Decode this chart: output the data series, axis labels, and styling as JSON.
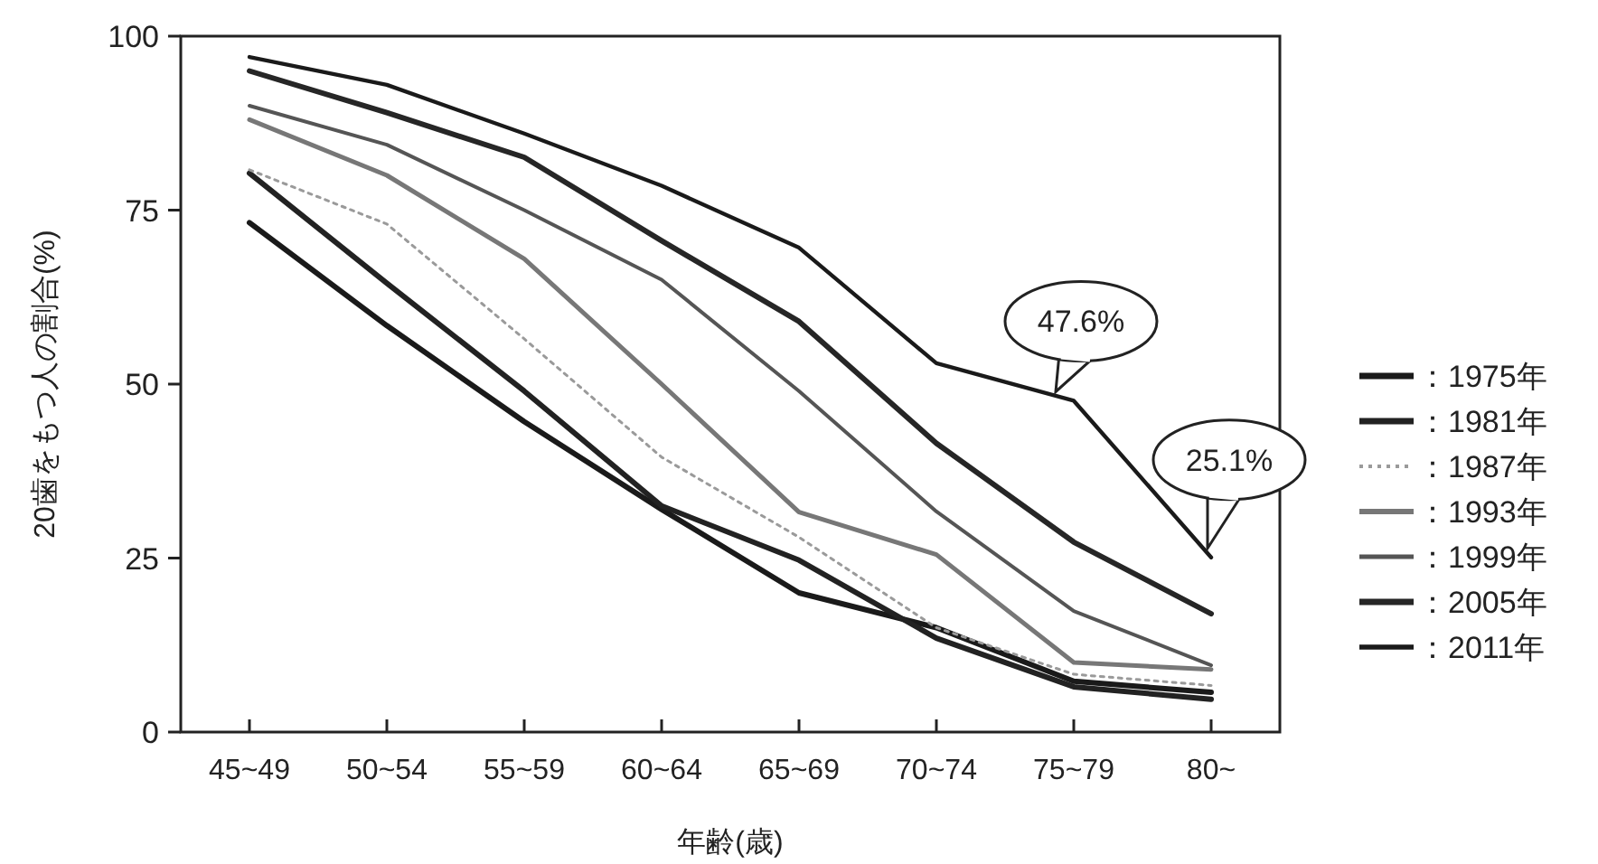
{
  "chart_data": {
    "type": "line",
    "xlabel": "年齢(歳)",
    "ylabel": "20歯をもつ人の割合(%)",
    "categories": [
      "45~49",
      "50~54",
      "55~59",
      "60~64",
      "65~69",
      "70~74",
      "75~79",
      "80~"
    ],
    "ylim": [
      0,
      100
    ],
    "yticks": [
      0,
      25,
      50,
      75,
      100
    ],
    "grid": false,
    "legend": "right",
    "marker": "none",
    "series": [
      {
        "name": "：1975年",
        "color": "#1a1a1a",
        "line_style": "solid",
        "values": [
          73.2,
          58.4,
          44.6,
          32,
          20,
          15,
          7.3,
          5.7
        ]
      },
      {
        "name": "：1981年",
        "color": "#222222",
        "line_style": "solid",
        "values": [
          80.3,
          64.5,
          49,
          32.5,
          24.7,
          13.5,
          6.5,
          4.7
        ]
      },
      {
        "name": "：1987年",
        "color": "#9a9a9a",
        "line_style": "dotted",
        "values": [
          80.8,
          73,
          56.5,
          39.5,
          28,
          15,
          8.3,
          6.7
        ]
      },
      {
        "name": "：1993年",
        "color": "#777777",
        "line_style": "solid",
        "values": [
          88,
          80,
          68,
          50,
          31.6,
          25.5,
          10,
          9
        ]
      },
      {
        "name": "：1999年",
        "color": "#555555",
        "line_style": "solid",
        "values": [
          90,
          84.4,
          75,
          65,
          49,
          31.7,
          17.4,
          9.6
        ]
      },
      {
        "name": "：2005年",
        "color": "#262626",
        "line_style": "solid",
        "values": [
          95,
          89,
          82.6,
          70.6,
          59,
          41.5,
          27.3,
          17
        ]
      },
      {
        "name": "：2011年",
        "color": "#1a1a1a",
        "line_style": "solid",
        "values": [
          97,
          93,
          86,
          78.5,
          69.6,
          53,
          47.6,
          25.1
        ]
      }
    ],
    "annotations": [
      {
        "text": "47.6%",
        "x": "75~79",
        "y": 47.6
      },
      {
        "text": "25.1%",
        "x": "80~",
        "y": 25.1
      }
    ]
  }
}
